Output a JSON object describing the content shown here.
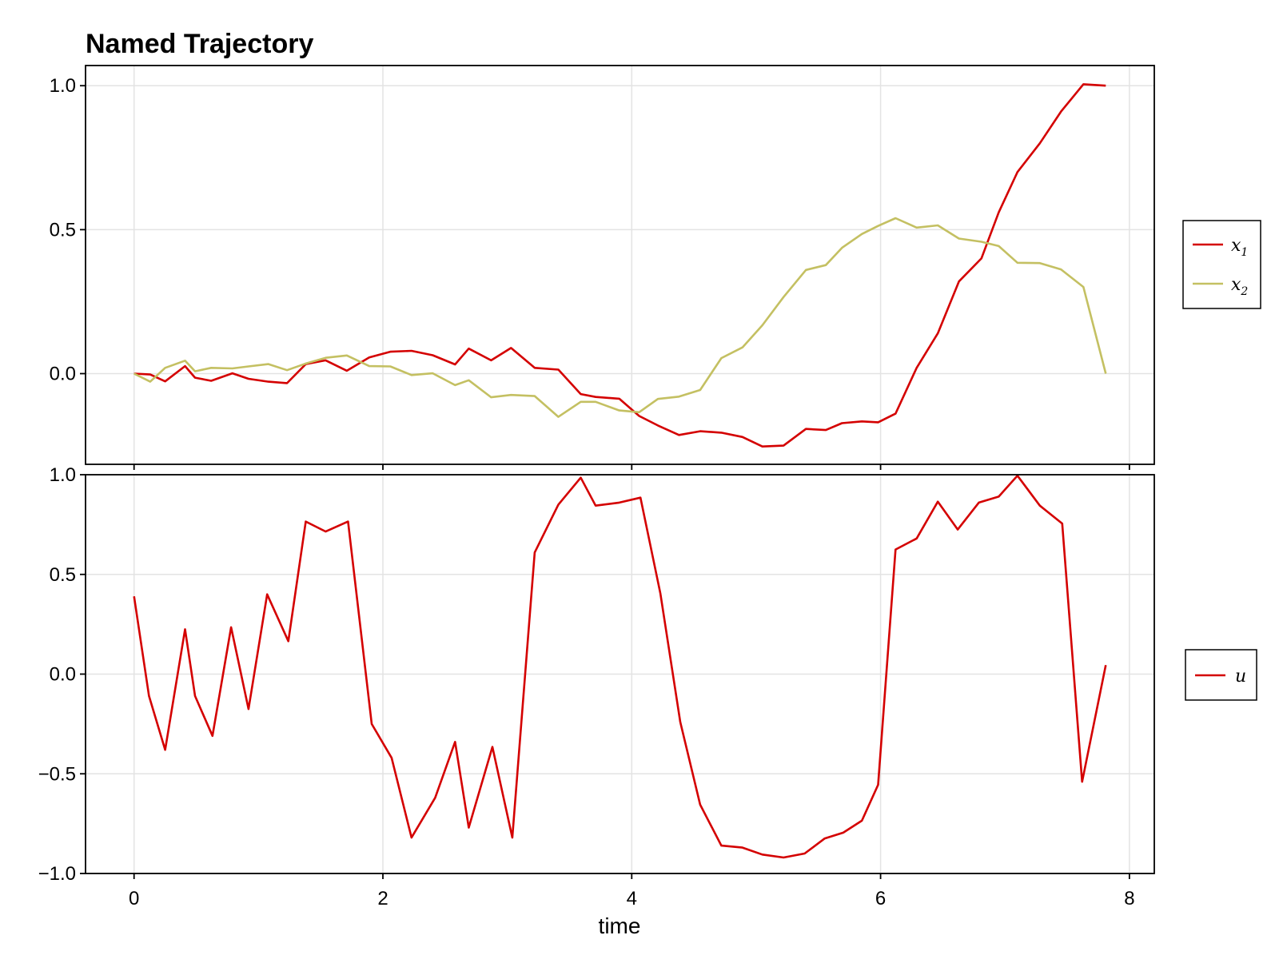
{
  "chart_data": [
    {
      "type": "line",
      "title": "Named Trajectory",
      "xlabel": "",
      "ylabel": "",
      "xlim": [
        -0.39,
        8.2
      ],
      "ylim": [
        -0.315,
        1.07
      ],
      "xticks": [
        0,
        2,
        4,
        6,
        8
      ],
      "yticks": [
        0.0,
        0.5,
        1.0
      ],
      "ytick_labels": [
        "0.0",
        "0.5",
        "1.0"
      ],
      "grid": true,
      "legend_placement": "right",
      "x": [
        0.0,
        0.13,
        0.25,
        0.41,
        0.49,
        0.62,
        0.79,
        0.92,
        1.08,
        1.23,
        1.38,
        1.54,
        1.71,
        1.89,
        2.06,
        2.23,
        2.4,
        2.58,
        2.69,
        2.87,
        3.03,
        3.22,
        3.41,
        3.59,
        3.71,
        3.9,
        4.06,
        4.21,
        4.38,
        4.55,
        4.72,
        4.89,
        5.05,
        5.22,
        5.4,
        5.56,
        5.69,
        5.85,
        5.98,
        6.12,
        6.29,
        6.46,
        6.63,
        6.81,
        6.95,
        7.1,
        7.28,
        7.45,
        7.63,
        7.81
      ],
      "series": [
        {
          "name": "x",
          "subscript": "1",
          "color": "#d40000",
          "values": [
            0.0,
            -0.003,
            -0.027,
            0.026,
            -0.014,
            -0.025,
            0.001,
            -0.018,
            -0.028,
            -0.033,
            0.033,
            0.046,
            0.01,
            0.056,
            0.076,
            0.079,
            0.064,
            0.032,
            0.087,
            0.046,
            0.089,
            0.02,
            0.014,
            -0.071,
            -0.081,
            -0.087,
            -0.147,
            -0.18,
            -0.213,
            -0.2,
            -0.205,
            -0.22,
            -0.253,
            -0.25,
            -0.192,
            -0.196,
            -0.172,
            -0.166,
            -0.169,
            -0.139,
            0.02,
            0.14,
            0.32,
            0.4,
            0.56,
            0.7,
            0.8,
            0.91,
            1.005,
            1.0
          ]
        },
        {
          "name": "x",
          "subscript": "2",
          "color": "#c4c062",
          "values": [
            0.0,
            -0.028,
            0.02,
            0.045,
            0.008,
            0.02,
            0.018,
            0.025,
            0.033,
            0.012,
            0.035,
            0.055,
            0.063,
            0.026,
            0.025,
            -0.005,
            0.001,
            -0.04,
            -0.023,
            -0.082,
            -0.074,
            -0.078,
            -0.15,
            -0.098,
            -0.098,
            -0.128,
            -0.134,
            -0.088,
            -0.08,
            -0.057,
            0.054,
            0.091,
            0.168,
            0.266,
            0.36,
            0.377,
            0.437,
            0.485,
            0.513,
            0.54,
            0.507,
            0.515,
            0.469,
            0.458,
            0.443,
            0.385,
            0.384,
            0.362,
            0.301,
            0.0
          ]
        }
      ]
    },
    {
      "type": "line",
      "title": "",
      "xlabel": "time",
      "ylabel": "",
      "xlim": [
        -0.39,
        8.2
      ],
      "ylim": [
        -1.0,
        1.0
      ],
      "xticks": [
        0,
        2,
        4,
        6,
        8
      ],
      "xtick_labels": [
        "0",
        "2",
        "4",
        "6",
        "8"
      ],
      "yticks": [
        -1.0,
        -0.5,
        0.0,
        0.5,
        1.0
      ],
      "ytick_labels": [
        "−1.0",
        "−0.5",
        "0.0",
        "0.5",
        "1.0"
      ],
      "grid": true,
      "legend_placement": "right",
      "x": [
        0.0,
        0.12,
        0.25,
        0.41,
        0.49,
        0.63,
        0.78,
        0.92,
        1.07,
        1.24,
        1.38,
        1.54,
        1.72,
        1.91,
        2.07,
        2.23,
        2.42,
        2.58,
        2.69,
        2.88,
        3.04,
        3.22,
        3.41,
        3.59,
        3.71,
        3.9,
        4.07,
        4.23,
        4.39,
        4.55,
        4.72,
        4.89,
        5.05,
        5.22,
        5.39,
        5.55,
        5.7,
        5.85,
        5.98,
        6.12,
        6.29,
        6.46,
        6.62,
        6.79,
        6.95,
        7.1,
        7.28,
        7.46,
        7.62,
        7.81
      ],
      "series": [
        {
          "name": "u",
          "color": "#d40000",
          "values": [
            0.39,
            -0.11,
            -0.38,
            0.225,
            -0.11,
            -0.31,
            0.235,
            -0.175,
            0.4,
            0.165,
            0.765,
            0.715,
            0.765,
            -0.25,
            -0.42,
            -0.82,
            -0.62,
            -0.34,
            -0.77,
            -0.365,
            -0.82,
            0.61,
            0.85,
            0.985,
            0.845,
            0.86,
            0.885,
            0.405,
            -0.24,
            -0.655,
            -0.86,
            -0.87,
            -0.905,
            -0.92,
            -0.9,
            -0.825,
            -0.795,
            -0.735,
            -0.555,
            0.625,
            0.68,
            0.865,
            0.725,
            0.86,
            0.89,
            0.995,
            0.845,
            0.755,
            -0.54,
            0.045
          ]
        }
      ]
    }
  ]
}
